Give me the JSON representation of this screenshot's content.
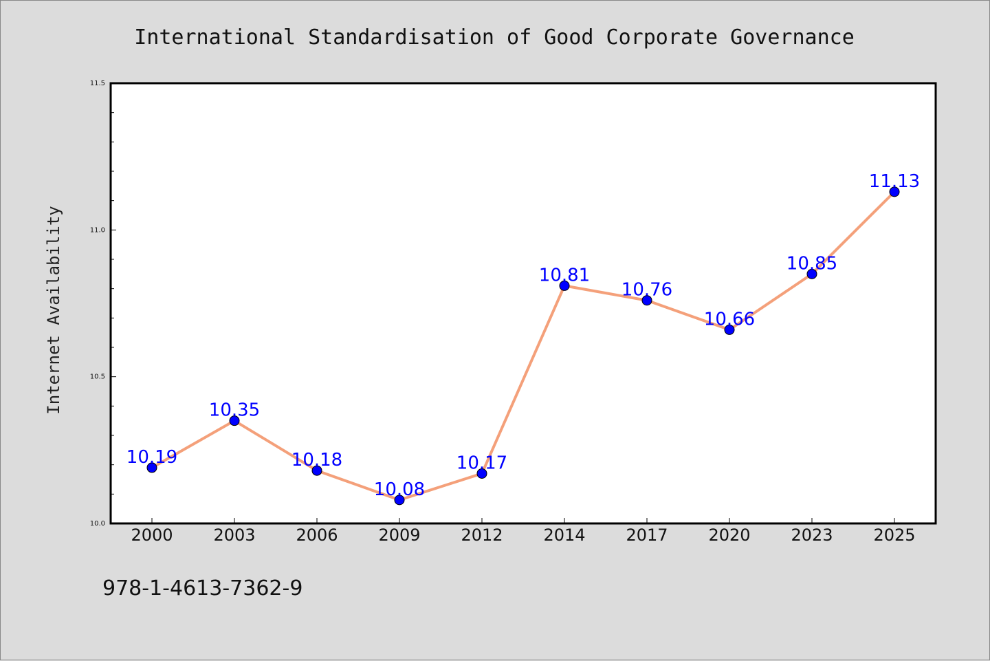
{
  "chart_data": {
    "type": "line",
    "title": "International Standardisation of Good Corporate Governance",
    "ylabel": "Internet Availability",
    "xlabel": "",
    "categories": [
      "2000",
      "2003",
      "2006",
      "2009",
      "2012",
      "2014",
      "2017",
      "2020",
      "2023",
      "2025"
    ],
    "series": [
      {
        "values": [
          10.19,
          10.35,
          10.18,
          10.08,
          10.17,
          10.81,
          10.76,
          10.66,
          10.85,
          11.13
        ],
        "labels": [
          "10.19",
          "10.35",
          "10.18",
          "10.08",
          "10.17",
          "10.81",
          "10.76",
          "10.66",
          "10.85",
          "11.13"
        ]
      }
    ],
    "ylim": [
      10.0,
      11.5
    ],
    "yticks": [
      "10.0",
      "10.5",
      "11.0",
      "11.5"
    ],
    "grid": false,
    "colors": {
      "line": "#f4a07a",
      "marker": "#0000ff",
      "label": "#0000ff",
      "plot_bg": "#ffffff",
      "page_bg": "#dcdcdc"
    }
  },
  "footer": {
    "text": "978-1-4613-7362-9"
  }
}
